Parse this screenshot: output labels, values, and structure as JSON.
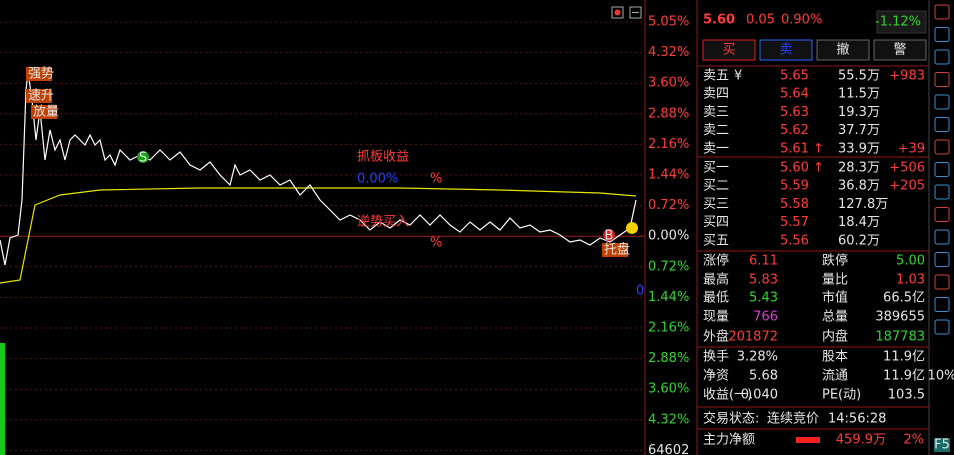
{
  "header": {
    "price": "5.60",
    "change": "0.05",
    "change_pct": "0.90%",
    "index_change": "-1.12%"
  },
  "buttons": [
    "买",
    "卖",
    "撤",
    "警"
  ],
  "axis_labels": [
    "5.05%",
    "4.32%",
    "3.60%",
    "2.88%",
    "2.16%",
    "1.44%",
    "0.72%",
    "0.00%",
    "0.72%",
    "1.44%",
    "2.16%",
    "2.88%",
    "3.60%",
    "4.32%",
    "64602"
  ],
  "annotations": {
    "strong": "强势",
    "rise": "速升",
    "volume": "放量",
    "sell_sign": "S",
    "grab_title": "抓板收益",
    "grab_value": "0.00%",
    "grab_pct": "%",
    "counter_title": "逆势买入",
    "counter_pct": "%",
    "buy_sign": "B",
    "support": "托盘",
    "volume_unit": "0"
  },
  "asks": [
    {
      "label": "卖五",
      "marker": "¥",
      "price": "5.65",
      "volume": "55.5万",
      "delta": "+983"
    },
    {
      "label": "卖四",
      "price": "5.64",
      "volume": "11.5万"
    },
    {
      "label": "卖三",
      "price": "5.63",
      "volume": "19.3万"
    },
    {
      "label": "卖二",
      "price": "5.62",
      "volume": "37.7万"
    },
    {
      "label": "卖一",
      "price": "5.61",
      "arrow": "↑",
      "volume": "33.9万",
      "delta": "+39"
    }
  ],
  "bids": [
    {
      "label": "买一",
      "price": "5.60",
      "arrow": "↑",
      "volume": "28.3万",
      "delta": "+506"
    },
    {
      "label": "买二",
      "price": "5.59",
      "volume": "36.8万",
      "delta": "+205"
    },
    {
      "label": "买三",
      "price": "5.58",
      "volume": "127.8万"
    },
    {
      "label": "买四",
      "price": "5.57",
      "volume": "18.4万"
    },
    {
      "label": "买五",
      "price": "5.56",
      "volume": "60.2万"
    }
  ],
  "stats": [
    [
      "涨停",
      "6.11",
      "跌停",
      "5.00"
    ],
    [
      "最高",
      "5.83",
      "量比",
      "1.03"
    ],
    [
      "最低",
      "5.43",
      "市值",
      "66.5亿"
    ],
    [
      "现量",
      "766",
      "总量",
      "389655"
    ],
    [
      "外盘",
      "201872",
      "内盘",
      "187783"
    ],
    [
      "换手",
      "3.28%",
      "股本",
      "11.9亿"
    ],
    [
      "净资",
      "5.68",
      "流通",
      "11.9亿"
    ],
    [
      "收益(一)",
      "0.040",
      "PE(动)",
      "103.5"
    ]
  ],
  "trade_status": {
    "label": "交易状态:",
    "value": "连续竞价",
    "time": "14:56:28"
  },
  "main_net": {
    "label": "主力净额",
    "value": "459.9万",
    "pct": "2%"
  },
  "toolbar": [
    "10%",
    "F5"
  ]
}
